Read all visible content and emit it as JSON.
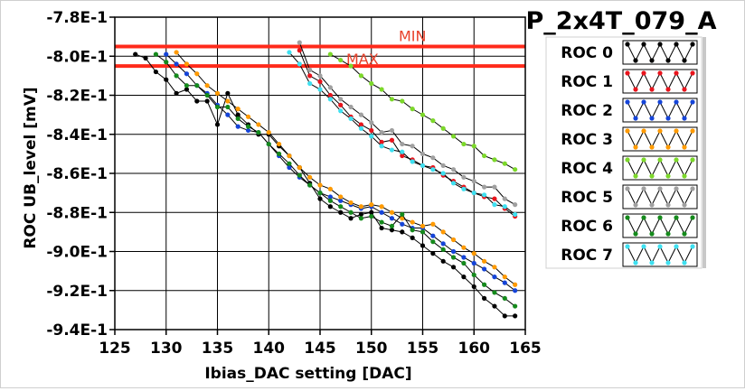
{
  "chart_data": {
    "type": "line",
    "title": "P_2x4T_079_A",
    "xlabel": "Ibias_DAC setting [DAC]",
    "ylabel": "ROC UB_level [mV]",
    "xlim": [
      125,
      165
    ],
    "ylim": [
      -0.94,
      -0.78
    ],
    "x_ticks": [
      125,
      130,
      135,
      140,
      145,
      150,
      155,
      160,
      165
    ],
    "x_tick_labels": [
      "125",
      "130",
      "135",
      "140",
      "145",
      "150",
      "155",
      "160",
      "165"
    ],
    "y_ticks": [
      -0.78,
      -0.8,
      -0.82,
      -0.84,
      -0.86,
      -0.88,
      -0.9,
      -0.92,
      -0.94
    ],
    "y_tick_labels": [
      "-7.8E-1",
      "-8.0E-1",
      "-8.2E-1",
      "-8.4E-1",
      "-8.6E-1",
      "-8.8E-1",
      "-9.0E-1",
      "-9.2E-1",
      "-9.4E-1"
    ],
    "grid": true,
    "legend_position": "right",
    "reference_lines": [
      {
        "label": "MIN",
        "value": -0.795,
        "color": "#ff2a1a"
      },
      {
        "label": "MAX",
        "value": -0.805,
        "color": "#ff2a1a"
      }
    ],
    "series": [
      {
        "name": "ROC 0",
        "color": "#000000",
        "x": [
          127,
          128,
          129,
          130,
          131,
          132,
          133,
          134,
          135,
          136,
          137,
          138,
          139,
          140,
          141,
          142,
          143,
          144,
          145,
          146,
          147,
          148,
          149,
          150,
          151,
          152,
          153,
          154,
          155,
          156,
          157,
          158,
          159,
          160,
          161,
          162,
          163,
          164
        ],
        "y": [
          -0.799,
          -0.801,
          -0.808,
          -0.812,
          -0.819,
          -0.817,
          -0.823,
          -0.823,
          -0.835,
          -0.819,
          -0.83,
          -0.835,
          -0.84,
          -0.84,
          -0.846,
          -0.851,
          -0.857,
          -0.865,
          -0.873,
          -0.877,
          -0.88,
          -0.883,
          -0.881,
          -0.88,
          -0.888,
          -0.889,
          -0.89,
          -0.893,
          -0.897,
          -0.901,
          -0.905,
          -0.908,
          -0.913,
          -0.918,
          -0.924,
          -0.928,
          -0.933,
          -0.933
        ]
      },
      {
        "name": "ROC 1",
        "color": "#e8141c",
        "x": [
          143,
          144,
          145,
          146,
          147,
          148,
          149,
          150,
          151,
          152,
          153,
          154,
          155,
          156,
          157,
          158,
          159,
          160,
          161,
          162,
          163,
          164
        ],
        "y": [
          -0.797,
          -0.81,
          -0.813,
          -0.82,
          -0.825,
          -0.831,
          -0.835,
          -0.838,
          -0.844,
          -0.843,
          -0.851,
          -0.853,
          -0.856,
          -0.857,
          -0.861,
          -0.864,
          -0.867,
          -0.87,
          -0.872,
          -0.873,
          -0.878,
          -0.882
        ]
      },
      {
        "name": "ROC 2",
        "color": "#1544d8",
        "x": [
          130,
          131,
          132,
          133,
          134,
          135,
          136,
          137,
          138,
          139,
          140,
          141,
          142,
          143,
          144,
          145,
          146,
          147,
          148,
          149,
          150,
          151,
          152,
          153,
          154,
          155,
          156,
          157,
          158,
          159,
          160,
          161,
          162,
          163,
          164
        ],
        "y": [
          -0.799,
          -0.804,
          -0.809,
          -0.815,
          -0.819,
          -0.825,
          -0.83,
          -0.836,
          -0.838,
          -0.839,
          -0.845,
          -0.851,
          -0.857,
          -0.862,
          -0.866,
          -0.87,
          -0.872,
          -0.874,
          -0.876,
          -0.878,
          -0.877,
          -0.88,
          -0.883,
          -0.886,
          -0.888,
          -0.888,
          -0.892,
          -0.896,
          -0.9,
          -0.903,
          -0.906,
          -0.909,
          -0.913,
          -0.916,
          -0.92
        ]
      },
      {
        "name": "ROC 3",
        "color": "#ff9a00",
        "x": [
          131,
          132,
          133,
          134,
          135,
          136,
          137,
          138,
          139,
          140,
          141,
          142,
          143,
          144,
          145,
          146,
          147,
          148,
          149,
          150,
          151,
          152,
          153,
          154,
          155,
          156,
          157,
          158,
          159,
          160,
          161,
          162,
          163,
          164
        ],
        "y": [
          -0.798,
          -0.804,
          -0.809,
          -0.815,
          -0.819,
          -0.823,
          -0.827,
          -0.831,
          -0.835,
          -0.839,
          -0.845,
          -0.851,
          -0.857,
          -0.862,
          -0.866,
          -0.868,
          -0.872,
          -0.875,
          -0.877,
          -0.876,
          -0.877,
          -0.88,
          -0.883,
          -0.885,
          -0.887,
          -0.886,
          -0.89,
          -0.894,
          -0.898,
          -0.901,
          -0.905,
          -0.908,
          -0.913,
          -0.917
        ]
      },
      {
        "name": "ROC 4",
        "color": "#7cd82a",
        "x": [
          146,
          147,
          148,
          149,
          150,
          151,
          152,
          153,
          154,
          155,
          156,
          157,
          158,
          159,
          160,
          161,
          162,
          163,
          164
        ],
        "y": [
          -0.799,
          -0.802,
          -0.805,
          -0.81,
          -0.814,
          -0.817,
          -0.822,
          -0.823,
          -0.827,
          -0.83,
          -0.833,
          -0.837,
          -0.841,
          -0.845,
          -0.846,
          -0.851,
          -0.853,
          -0.855,
          -0.858
        ]
      },
      {
        "name": "ROC 5",
        "color": "#a0a0a0",
        "x": [
          143,
          144,
          145,
          146,
          147,
          148,
          149,
          150,
          151,
          152,
          153,
          154,
          155,
          156,
          157,
          158,
          159,
          160,
          161,
          162,
          163,
          164
        ],
        "y": [
          -0.793,
          -0.807,
          -0.81,
          -0.816,
          -0.822,
          -0.826,
          -0.83,
          -0.834,
          -0.839,
          -0.838,
          -0.845,
          -0.846,
          -0.85,
          -0.852,
          -0.856,
          -0.858,
          -0.862,
          -0.864,
          -0.867,
          -0.867,
          -0.873,
          -0.876
        ]
      },
      {
        "name": "ROC 6",
        "color": "#158a1c",
        "x": [
          129,
          130,
          131,
          132,
          133,
          134,
          135,
          136,
          137,
          138,
          139,
          140,
          141,
          142,
          143,
          144,
          145,
          146,
          147,
          148,
          149,
          150,
          151,
          152,
          153,
          154,
          155,
          156,
          157,
          158,
          159,
          160,
          161,
          162,
          163,
          164
        ],
        "y": [
          -0.799,
          -0.803,
          -0.81,
          -0.815,
          -0.815,
          -0.82,
          -0.826,
          -0.826,
          -0.832,
          -0.836,
          -0.839,
          -0.845,
          -0.85,
          -0.855,
          -0.861,
          -0.866,
          -0.87,
          -0.874,
          -0.877,
          -0.88,
          -0.883,
          -0.882,
          -0.885,
          -0.887,
          -0.881,
          -0.889,
          -0.89,
          -0.895,
          -0.899,
          -0.903,
          -0.906,
          -0.912,
          -0.917,
          -0.921,
          -0.924,
          -0.928
        ]
      },
      {
        "name": "ROC 7",
        "color": "#3fe0f0",
        "x": [
          142,
          143,
          144,
          145,
          146,
          147,
          148,
          149,
          150,
          151,
          152,
          153,
          154,
          155,
          156,
          157,
          158,
          159,
          160,
          161,
          162,
          163,
          164
        ],
        "y": [
          -0.798,
          -0.804,
          -0.814,
          -0.817,
          -0.822,
          -0.828,
          -0.832,
          -0.837,
          -0.841,
          -0.846,
          -0.848,
          -0.849,
          -0.854,
          -0.856,
          -0.858,
          -0.86,
          -0.865,
          -0.868,
          -0.87,
          -0.871,
          -0.876,
          -0.877,
          -0.881
        ]
      }
    ]
  }
}
